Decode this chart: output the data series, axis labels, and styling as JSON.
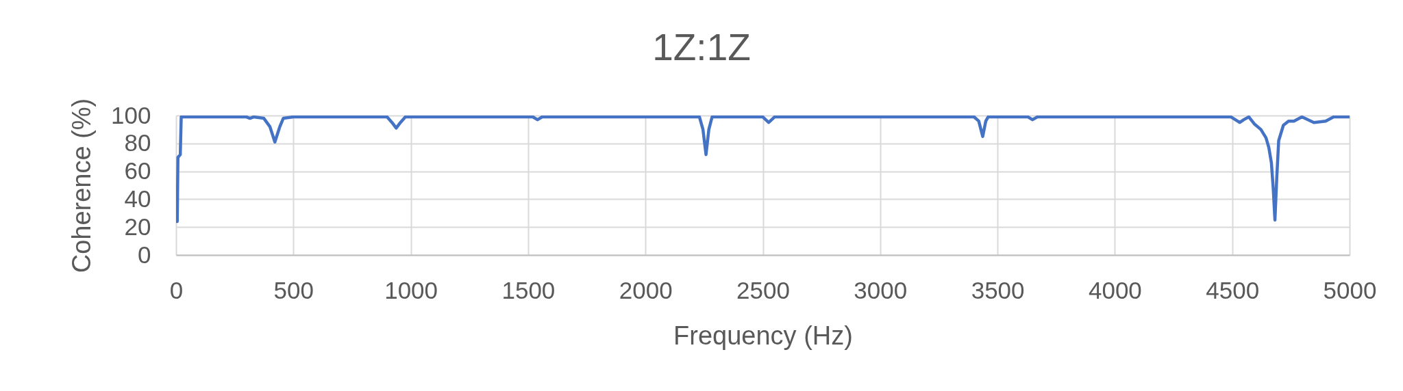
{
  "chart_data": {
    "type": "line",
    "title": "1Z:1Z",
    "xlabel": "Frequency (Hz)",
    "ylabel": "Coherence (%)",
    "x": [
      5,
      8,
      18,
      22,
      50,
      300,
      315,
      330,
      374,
      400,
      421,
      442,
      457,
      500,
      899,
      920,
      938,
      956,
      977,
      1000,
      1520,
      1540,
      1560,
      1600,
      2230,
      2245,
      2258,
      2270,
      2284,
      2300,
      2500,
      2525,
      2550,
      2600,
      3400,
      3420,
      3437,
      3450,
      3460,
      3500,
      3630,
      3649,
      3670,
      3700,
      4495,
      4532,
      4549,
      4571,
      4594,
      4622,
      4644,
      4656,
      4667,
      4675,
      4682,
      4690,
      4698,
      4718,
      4740,
      4763,
      4797,
      4848,
      4898,
      4932,
      5000
    ],
    "series": [
      {
        "color": "#4472c4",
        "values": [
          24,
          70,
          72,
          99,
          99,
          99,
          98,
          99,
          98,
          92,
          81,
          92,
          98,
          99,
          99,
          95,
          91,
          95,
          99,
          99,
          99,
          97,
          99,
          99,
          99,
          90,
          72,
          90,
          99,
          99,
          99,
          95,
          99,
          99,
          99,
          96,
          85,
          96,
          99,
          99,
          99,
          97,
          99,
          99,
          99,
          95,
          97,
          99,
          94,
          90,
          84,
          77,
          66,
          47,
          25,
          56,
          82,
          93,
          96,
          96,
          99,
          95,
          96,
          99,
          99
        ]
      }
    ],
    "xlim": [
      0,
      5000
    ],
    "xticks": [
      0,
      500,
      1000,
      1500,
      2000,
      2500,
      3000,
      3500,
      4000,
      4500,
      5000
    ],
    "ylim": [
      0,
      100
    ],
    "yticks": [
      0,
      20,
      40,
      60,
      80,
      100
    ],
    "grid": true
  }
}
